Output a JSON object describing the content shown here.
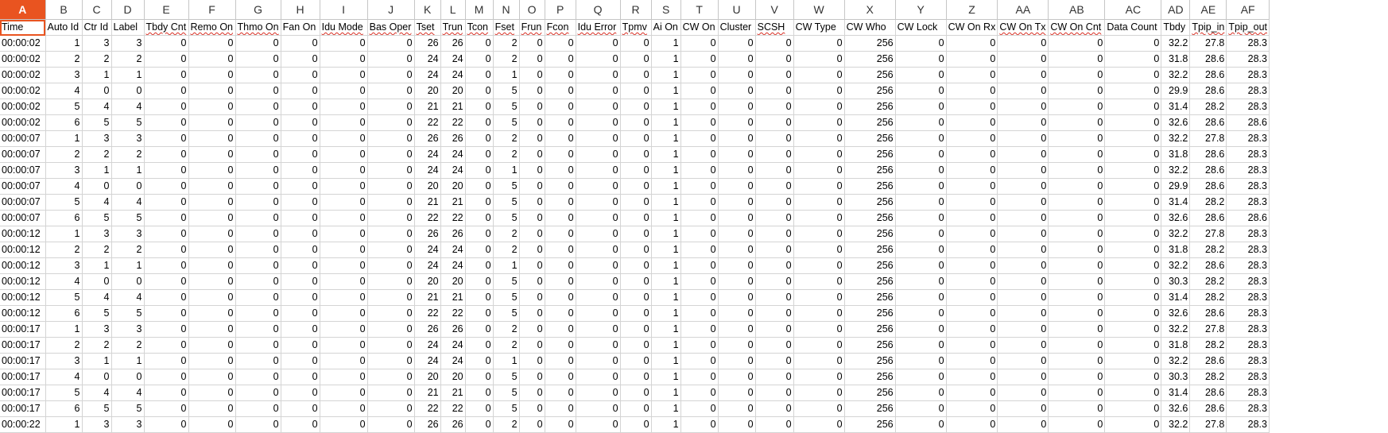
{
  "columns": [
    "A",
    "B",
    "C",
    "D",
    "E",
    "F",
    "G",
    "H",
    "I",
    "J",
    "K",
    "L",
    "M",
    "N",
    "O",
    "P",
    "Q",
    "R",
    "S",
    "T",
    "U",
    "V",
    "W",
    "X",
    "Y",
    "Z",
    "AA",
    "AB",
    "AC",
    "AD",
    "AE",
    "AF"
  ],
  "selected_column": "A",
  "headers": [
    "Time",
    "Auto Id",
    "Ctr Id",
    "Label",
    "Tbdy Cnt",
    "Remo On",
    "Thmo On",
    "Fan On",
    "Idu Mode",
    "Bas Oper",
    "Tset",
    "Trun",
    "Tcon",
    "Fset",
    "Frun",
    "Fcon",
    "Idu Error",
    "Tpmv",
    "Ai On",
    "CW On",
    "Cluster",
    "SCSH",
    "CW Type",
    "CW Who",
    "CW Lock",
    "CW On Rx",
    "CW On Tx",
    "CW On Cnt",
    "Data Count",
    "Tbdy",
    "Tpip_in",
    "Tpip_out"
  ],
  "spellcheck_headers": [
    4,
    5,
    6,
    8,
    9,
    10,
    11,
    12,
    13,
    14,
    15,
    16,
    17,
    21,
    26,
    27,
    30,
    31
  ],
  "rows": [
    [
      "00:00:02",
      "1",
      "3",
      "3",
      "0",
      "0",
      "0",
      "0",
      "0",
      "0",
      "26",
      "26",
      "0",
      "2",
      "0",
      "0",
      "0",
      "0",
      "1",
      "0",
      "0",
      "0",
      "0",
      "256",
      "0",
      "0",
      "0",
      "0",
      "0",
      "32.2",
      "27.8",
      "28.3"
    ],
    [
      "00:00:02",
      "2",
      "2",
      "2",
      "0",
      "0",
      "0",
      "0",
      "0",
      "0",
      "24",
      "24",
      "0",
      "2",
      "0",
      "0",
      "0",
      "0",
      "1",
      "0",
      "0",
      "0",
      "0",
      "256",
      "0",
      "0",
      "0",
      "0",
      "0",
      "31.8",
      "28.6",
      "28.3"
    ],
    [
      "00:00:02",
      "3",
      "1",
      "1",
      "0",
      "0",
      "0",
      "0",
      "0",
      "0",
      "24",
      "24",
      "0",
      "1",
      "0",
      "0",
      "0",
      "0",
      "1",
      "0",
      "0",
      "0",
      "0",
      "256",
      "0",
      "0",
      "0",
      "0",
      "0",
      "32.2",
      "28.6",
      "28.3"
    ],
    [
      "00:00:02",
      "4",
      "0",
      "0",
      "0",
      "0",
      "0",
      "0",
      "0",
      "0",
      "20",
      "20",
      "0",
      "5",
      "0",
      "0",
      "0",
      "0",
      "1",
      "0",
      "0",
      "0",
      "0",
      "256",
      "0",
      "0",
      "0",
      "0",
      "0",
      "29.9",
      "28.6",
      "28.3"
    ],
    [
      "00:00:02",
      "5",
      "4",
      "4",
      "0",
      "0",
      "0",
      "0",
      "0",
      "0",
      "21",
      "21",
      "0",
      "5",
      "0",
      "0",
      "0",
      "0",
      "1",
      "0",
      "0",
      "0",
      "0",
      "256",
      "0",
      "0",
      "0",
      "0",
      "0",
      "31.4",
      "28.2",
      "28.3"
    ],
    [
      "00:00:02",
      "6",
      "5",
      "5",
      "0",
      "0",
      "0",
      "0",
      "0",
      "0",
      "22",
      "22",
      "0",
      "5",
      "0",
      "0",
      "0",
      "0",
      "1",
      "0",
      "0",
      "0",
      "0",
      "256",
      "0",
      "0",
      "0",
      "0",
      "0",
      "32.6",
      "28.6",
      "28.6"
    ],
    [
      "00:00:07",
      "1",
      "3",
      "3",
      "0",
      "0",
      "0",
      "0",
      "0",
      "0",
      "26",
      "26",
      "0",
      "2",
      "0",
      "0",
      "0",
      "0",
      "1",
      "0",
      "0",
      "0",
      "0",
      "256",
      "0",
      "0",
      "0",
      "0",
      "0",
      "32.2",
      "27.8",
      "28.3"
    ],
    [
      "00:00:07",
      "2",
      "2",
      "2",
      "0",
      "0",
      "0",
      "0",
      "0",
      "0",
      "24",
      "24",
      "0",
      "2",
      "0",
      "0",
      "0",
      "0",
      "1",
      "0",
      "0",
      "0",
      "0",
      "256",
      "0",
      "0",
      "0",
      "0",
      "0",
      "31.8",
      "28.6",
      "28.3"
    ],
    [
      "00:00:07",
      "3",
      "1",
      "1",
      "0",
      "0",
      "0",
      "0",
      "0",
      "0",
      "24",
      "24",
      "0",
      "1",
      "0",
      "0",
      "0",
      "0",
      "1",
      "0",
      "0",
      "0",
      "0",
      "256",
      "0",
      "0",
      "0",
      "0",
      "0",
      "32.2",
      "28.6",
      "28.3"
    ],
    [
      "00:00:07",
      "4",
      "0",
      "0",
      "0",
      "0",
      "0",
      "0",
      "0",
      "0",
      "20",
      "20",
      "0",
      "5",
      "0",
      "0",
      "0",
      "0",
      "1",
      "0",
      "0",
      "0",
      "0",
      "256",
      "0",
      "0",
      "0",
      "0",
      "0",
      "29.9",
      "28.6",
      "28.3"
    ],
    [
      "00:00:07",
      "5",
      "4",
      "4",
      "0",
      "0",
      "0",
      "0",
      "0",
      "0",
      "21",
      "21",
      "0",
      "5",
      "0",
      "0",
      "0",
      "0",
      "1",
      "0",
      "0",
      "0",
      "0",
      "256",
      "0",
      "0",
      "0",
      "0",
      "0",
      "31.4",
      "28.2",
      "28.3"
    ],
    [
      "00:00:07",
      "6",
      "5",
      "5",
      "0",
      "0",
      "0",
      "0",
      "0",
      "0",
      "22",
      "22",
      "0",
      "5",
      "0",
      "0",
      "0",
      "0",
      "1",
      "0",
      "0",
      "0",
      "0",
      "256",
      "0",
      "0",
      "0",
      "0",
      "0",
      "32.6",
      "28.6",
      "28.6"
    ],
    [
      "00:00:12",
      "1",
      "3",
      "3",
      "0",
      "0",
      "0",
      "0",
      "0",
      "0",
      "26",
      "26",
      "0",
      "2",
      "0",
      "0",
      "0",
      "0",
      "1",
      "0",
      "0",
      "0",
      "0",
      "256",
      "0",
      "0",
      "0",
      "0",
      "0",
      "32.2",
      "27.8",
      "28.3"
    ],
    [
      "00:00:12",
      "2",
      "2",
      "2",
      "0",
      "0",
      "0",
      "0",
      "0",
      "0",
      "24",
      "24",
      "0",
      "2",
      "0",
      "0",
      "0",
      "0",
      "1",
      "0",
      "0",
      "0",
      "0",
      "256",
      "0",
      "0",
      "0",
      "0",
      "0",
      "31.8",
      "28.2",
      "28.3"
    ],
    [
      "00:00:12",
      "3",
      "1",
      "1",
      "0",
      "0",
      "0",
      "0",
      "0",
      "0",
      "24",
      "24",
      "0",
      "1",
      "0",
      "0",
      "0",
      "0",
      "1",
      "0",
      "0",
      "0",
      "0",
      "256",
      "0",
      "0",
      "0",
      "0",
      "0",
      "32.2",
      "28.6",
      "28.3"
    ],
    [
      "00:00:12",
      "4",
      "0",
      "0",
      "0",
      "0",
      "0",
      "0",
      "0",
      "0",
      "20",
      "20",
      "0",
      "5",
      "0",
      "0",
      "0",
      "0",
      "1",
      "0",
      "0",
      "0",
      "0",
      "256",
      "0",
      "0",
      "0",
      "0",
      "0",
      "30.3",
      "28.2",
      "28.3"
    ],
    [
      "00:00:12",
      "5",
      "4",
      "4",
      "0",
      "0",
      "0",
      "0",
      "0",
      "0",
      "21",
      "21",
      "0",
      "5",
      "0",
      "0",
      "0",
      "0",
      "1",
      "0",
      "0",
      "0",
      "0",
      "256",
      "0",
      "0",
      "0",
      "0",
      "0",
      "31.4",
      "28.2",
      "28.3"
    ],
    [
      "00:00:12",
      "6",
      "5",
      "5",
      "0",
      "0",
      "0",
      "0",
      "0",
      "0",
      "22",
      "22",
      "0",
      "5",
      "0",
      "0",
      "0",
      "0",
      "1",
      "0",
      "0",
      "0",
      "0",
      "256",
      "0",
      "0",
      "0",
      "0",
      "0",
      "32.6",
      "28.6",
      "28.3"
    ],
    [
      "00:00:17",
      "1",
      "3",
      "3",
      "0",
      "0",
      "0",
      "0",
      "0",
      "0",
      "26",
      "26",
      "0",
      "2",
      "0",
      "0",
      "0",
      "0",
      "1",
      "0",
      "0",
      "0",
      "0",
      "256",
      "0",
      "0",
      "0",
      "0",
      "0",
      "32.2",
      "27.8",
      "28.3"
    ],
    [
      "00:00:17",
      "2",
      "2",
      "2",
      "0",
      "0",
      "0",
      "0",
      "0",
      "0",
      "24",
      "24",
      "0",
      "2",
      "0",
      "0",
      "0",
      "0",
      "1",
      "0",
      "0",
      "0",
      "0",
      "256",
      "0",
      "0",
      "0",
      "0",
      "0",
      "31.8",
      "28.2",
      "28.3"
    ],
    [
      "00:00:17",
      "3",
      "1",
      "1",
      "0",
      "0",
      "0",
      "0",
      "0",
      "0",
      "24",
      "24",
      "0",
      "1",
      "0",
      "0",
      "0",
      "0",
      "1",
      "0",
      "0",
      "0",
      "0",
      "256",
      "0",
      "0",
      "0",
      "0",
      "0",
      "32.2",
      "28.6",
      "28.3"
    ],
    [
      "00:00:17",
      "4",
      "0",
      "0",
      "0",
      "0",
      "0",
      "0",
      "0",
      "0",
      "20",
      "20",
      "0",
      "5",
      "0",
      "0",
      "0",
      "0",
      "1",
      "0",
      "0",
      "0",
      "0",
      "256",
      "0",
      "0",
      "0",
      "0",
      "0",
      "30.3",
      "28.2",
      "28.3"
    ],
    [
      "00:00:17",
      "5",
      "4",
      "4",
      "0",
      "0",
      "0",
      "0",
      "0",
      "0",
      "21",
      "21",
      "0",
      "5",
      "0",
      "0",
      "0",
      "0",
      "1",
      "0",
      "0",
      "0",
      "0",
      "256",
      "0",
      "0",
      "0",
      "0",
      "0",
      "31.4",
      "28.6",
      "28.3"
    ],
    [
      "00:00:17",
      "6",
      "5",
      "5",
      "0",
      "0",
      "0",
      "0",
      "0",
      "0",
      "22",
      "22",
      "0",
      "5",
      "0",
      "0",
      "0",
      "0",
      "1",
      "0",
      "0",
      "0",
      "0",
      "256",
      "0",
      "0",
      "0",
      "0",
      "0",
      "32.6",
      "28.6",
      "28.3"
    ],
    [
      "00:00:22",
      "1",
      "3",
      "3",
      "0",
      "0",
      "0",
      "0",
      "0",
      "0",
      "26",
      "26",
      "0",
      "2",
      "0",
      "0",
      "0",
      "0",
      "1",
      "0",
      "0",
      "0",
      "0",
      "256",
      "0",
      "0",
      "0",
      "0",
      "0",
      "32.2",
      "27.8",
      "28.3"
    ]
  ],
  "colors": {
    "accent": "#e95420",
    "grid": "#d4d4d4",
    "spellcheck": "#d93025"
  }
}
